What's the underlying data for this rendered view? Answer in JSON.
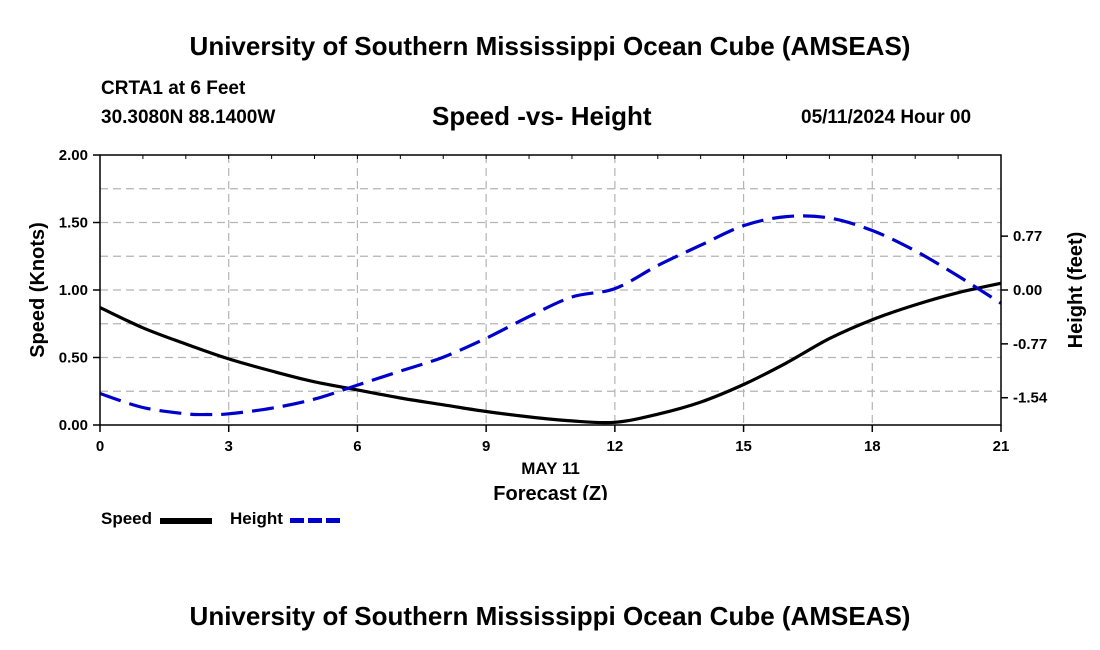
{
  "page": {
    "title_top": "University of Southern Mississippi Ocean Cube (AMSEAS)",
    "title_bottom": "University of Southern Mississippi Ocean Cube (AMSEAS)",
    "station": "CRTA1 at 6 Feet",
    "coords": "30.3080N  88.1400W",
    "chart_title": "Speed -vs- Height",
    "datetime": "05/11/2024 Hour 00"
  },
  "colors": {
    "speed": "#000000",
    "height": "#0000cc",
    "grid": "#b4b4b4"
  },
  "chart_data": {
    "type": "line",
    "title": "Speed -vs- Height",
    "xlabel": "Forecast (Z)",
    "xlabel_date": "MAY 11",
    "xlim": [
      0,
      21
    ],
    "x_ticks": [
      "0",
      "3",
      "6",
      "9",
      "12",
      "15",
      "18",
      "21"
    ],
    "ylabel": "Speed (Knots)",
    "ylim": [
      0,
      2
    ],
    "y_ticks": [
      "0.00",
      "0.50",
      "1.00",
      "1.50",
      "2.00"
    ],
    "y2label": "Height (feet)",
    "y2lim": [
      -1.93,
      1.93
    ],
    "y2_ticks": [
      "-1.54",
      "-0.77",
      "0.00",
      "0.77"
    ],
    "y2_tick_values": [
      -1.54,
      -0.77,
      0.0,
      0.77
    ],
    "legend": [
      "Speed",
      "Height"
    ],
    "series": [
      {
        "name": "Speed",
        "axis": "left",
        "style": "solid",
        "x": [
          0,
          1,
          2,
          3,
          4,
          5,
          6,
          7,
          8,
          9,
          10,
          11,
          12,
          13,
          14,
          15,
          16,
          17,
          18,
          19,
          20,
          21
        ],
        "values": [
          0.87,
          0.72,
          0.6,
          0.49,
          0.4,
          0.32,
          0.26,
          0.2,
          0.15,
          0.1,
          0.06,
          0.03,
          0.02,
          0.08,
          0.17,
          0.3,
          0.46,
          0.64,
          0.78,
          0.89,
          0.98,
          1.05
        ]
      },
      {
        "name": "Height",
        "axis": "right",
        "style": "dashed",
        "x": [
          0,
          1,
          2,
          2.5,
          3,
          4,
          5,
          6,
          7,
          8,
          9,
          10,
          11,
          12,
          13,
          14,
          15,
          16,
          17,
          18,
          19,
          20,
          21
        ],
        "values": [
          -1.48,
          -1.68,
          -1.77,
          -1.78,
          -1.77,
          -1.69,
          -1.56,
          -1.36,
          -1.16,
          -0.96,
          -0.69,
          -0.38,
          -0.1,
          0.02,
          0.35,
          0.64,
          0.92,
          1.05,
          1.03,
          0.85,
          0.56,
          0.2,
          -0.19
        ]
      }
    ]
  }
}
